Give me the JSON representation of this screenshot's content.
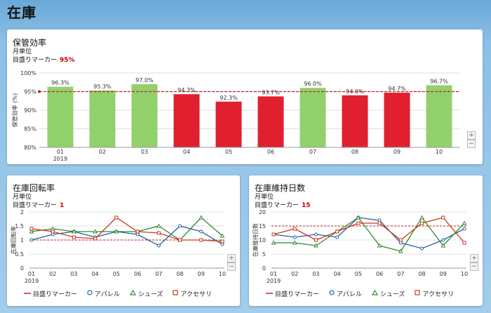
{
  "page": {
    "title": "在庫"
  },
  "colors": {
    "good": "#92d06c",
    "bad": "#e0202e",
    "marker": "#c0222a",
    "apparel": "#1f5fa8",
    "shoes": "#2e8b2e",
    "accessory": "#cc3a1a"
  },
  "storage": {
    "title": "保管効率",
    "subtitle": "月単位",
    "marker_label": "目盛りマーカー",
    "marker_value": "95%",
    "zoom_in": "+",
    "zoom_out": "−"
  },
  "turnover": {
    "title": "在庫回転率",
    "subtitle": "月単位",
    "marker_label": "目盛りマーカー",
    "marker_value": "1",
    "zoom_in": "+",
    "zoom_out": "−",
    "legend": [
      "目盛りマーカー",
      "アパレル",
      "シューズ",
      "アクセサリ"
    ]
  },
  "days": {
    "title": "在庫維持日数",
    "subtitle": "月単位",
    "marker_label": "目盛りマーカー",
    "marker_value": "15",
    "zoom_in": "+",
    "zoom_out": "−",
    "legend": [
      "目盛りマーカー",
      "アパレル",
      "シューズ",
      "アクセサリ"
    ]
  },
  "chart_data": [
    {
      "type": "bar",
      "ylabel": "保管効率 (%)",
      "ylim": [
        80,
        100
      ],
      "yticks": [
        "80%",
        "85%",
        "90%",
        "95%",
        "100%"
      ],
      "categories": [
        "01",
        "02",
        "03",
        "04",
        "05",
        "06",
        "07",
        "08",
        "09",
        "10"
      ],
      "year_label": "2019",
      "values": [
        96.3,
        95.3,
        97.0,
        94.3,
        92.3,
        93.7,
        96.0,
        94.0,
        94.7,
        96.7
      ],
      "labels": [
        "96.3%",
        "95.3%",
        "97.0%",
        "94.3%",
        "92.3%",
        "93.7%",
        "96.0%",
        "94.0%",
        "94.7%",
        "96.7%"
      ],
      "marker": 95
    },
    {
      "type": "line",
      "ylabel": "在庫回転率",
      "ylim": [
        0,
        2
      ],
      "yticks": [
        "0",
        "0.5",
        "1",
        "1.5",
        "2"
      ],
      "categories": [
        "01",
        "02",
        "03",
        "04",
        "05",
        "06",
        "07",
        "08",
        "09",
        "10"
      ],
      "year_label": "2019",
      "marker": 1,
      "series": [
        {
          "name": "アパレル",
          "values": [
            1.0,
            1.2,
            1.3,
            1.1,
            1.3,
            1.2,
            0.8,
            1.5,
            1.3,
            0.85
          ]
        },
        {
          "name": "シューズ",
          "values": [
            1.3,
            1.4,
            1.3,
            1.3,
            1.3,
            1.3,
            1.5,
            1.0,
            1.8,
            1.15
          ]
        },
        {
          "name": "アクセサリ",
          "values": [
            1.4,
            1.3,
            1.1,
            1.05,
            1.8,
            1.3,
            1.25,
            1.0,
            1.0,
            0.95
          ]
        }
      ]
    },
    {
      "type": "line",
      "ylabel": "在庫維持日数",
      "ylim": [
        0,
        20
      ],
      "yticks": [
        "0",
        "5",
        "10",
        "15",
        "20"
      ],
      "categories": [
        "01",
        "02",
        "03",
        "04",
        "05",
        "06",
        "07",
        "08",
        "09",
        "10"
      ],
      "year_label": "2019",
      "marker": 15,
      "series": [
        {
          "name": "アパレル",
          "values": [
            12,
            11,
            12,
            11,
            18,
            17,
            9,
            7,
            10,
            14
          ]
        },
        {
          "name": "シューズ",
          "values": [
            9,
            9,
            8,
            13,
            18,
            8,
            6,
            18,
            8,
            16
          ]
        },
        {
          "name": "アクセサリ",
          "values": [
            12,
            14,
            10,
            13,
            16,
            16,
            10,
            16,
            18,
            9
          ]
        }
      ]
    }
  ]
}
